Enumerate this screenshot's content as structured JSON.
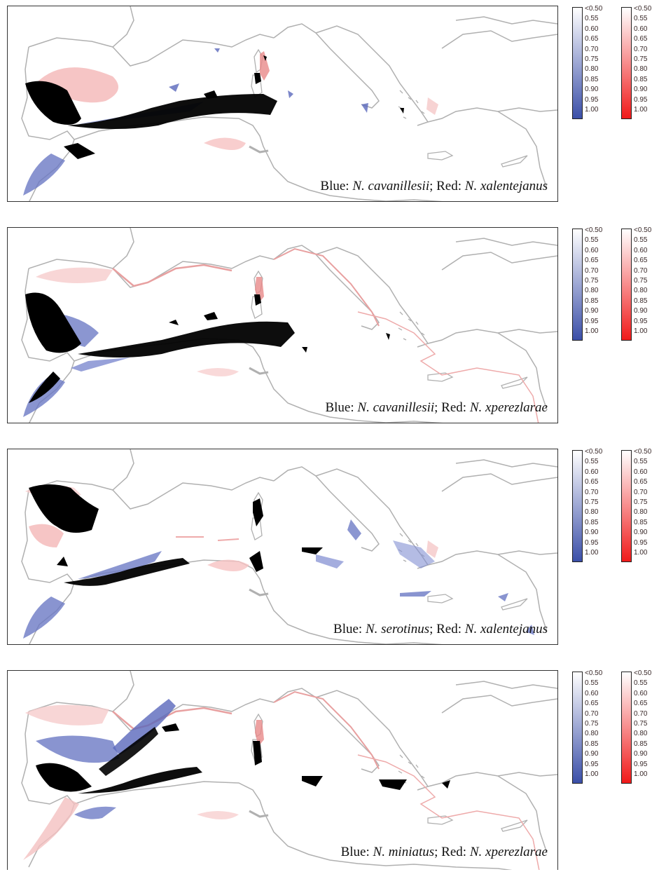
{
  "legend": {
    "ticks": [
      "<0.50",
      "0.55",
      "0.60",
      "0.65",
      "0.70",
      "0.75",
      "0.80",
      "0.85",
      "0.90",
      "0.95",
      "1.00"
    ],
    "blue_color": "#3b4fa8",
    "red_color": "#f01a1a",
    "overlap_color": "#000000",
    "coast_color": "#b0b0b0"
  },
  "panels": [
    {
      "caption": {
        "blue_label": "Blue: ",
        "blue_species": "N. cavanillesii",
        "sep": "; Red: ",
        "red_genus": "N. x",
        "red_species": "alentejanus"
      }
    },
    {
      "caption": {
        "blue_label": "Blue: ",
        "blue_species": "N. cavanillesii",
        "sep": "; Red: ",
        "red_genus": "N. x",
        "red_species": "perezlarae"
      }
    },
    {
      "caption": {
        "blue_label": "Blue: ",
        "blue_species": "N. serotinus",
        "sep": "; Red: ",
        "red_genus": "N. x",
        "red_species": "alentejanus"
      }
    },
    {
      "caption": {
        "blue_label": "Blue: ",
        "blue_species": "N. miniatus",
        "sep": "; Red: ",
        "red_genus": "N. x",
        "red_species": "perezlarae"
      }
    }
  ]
}
